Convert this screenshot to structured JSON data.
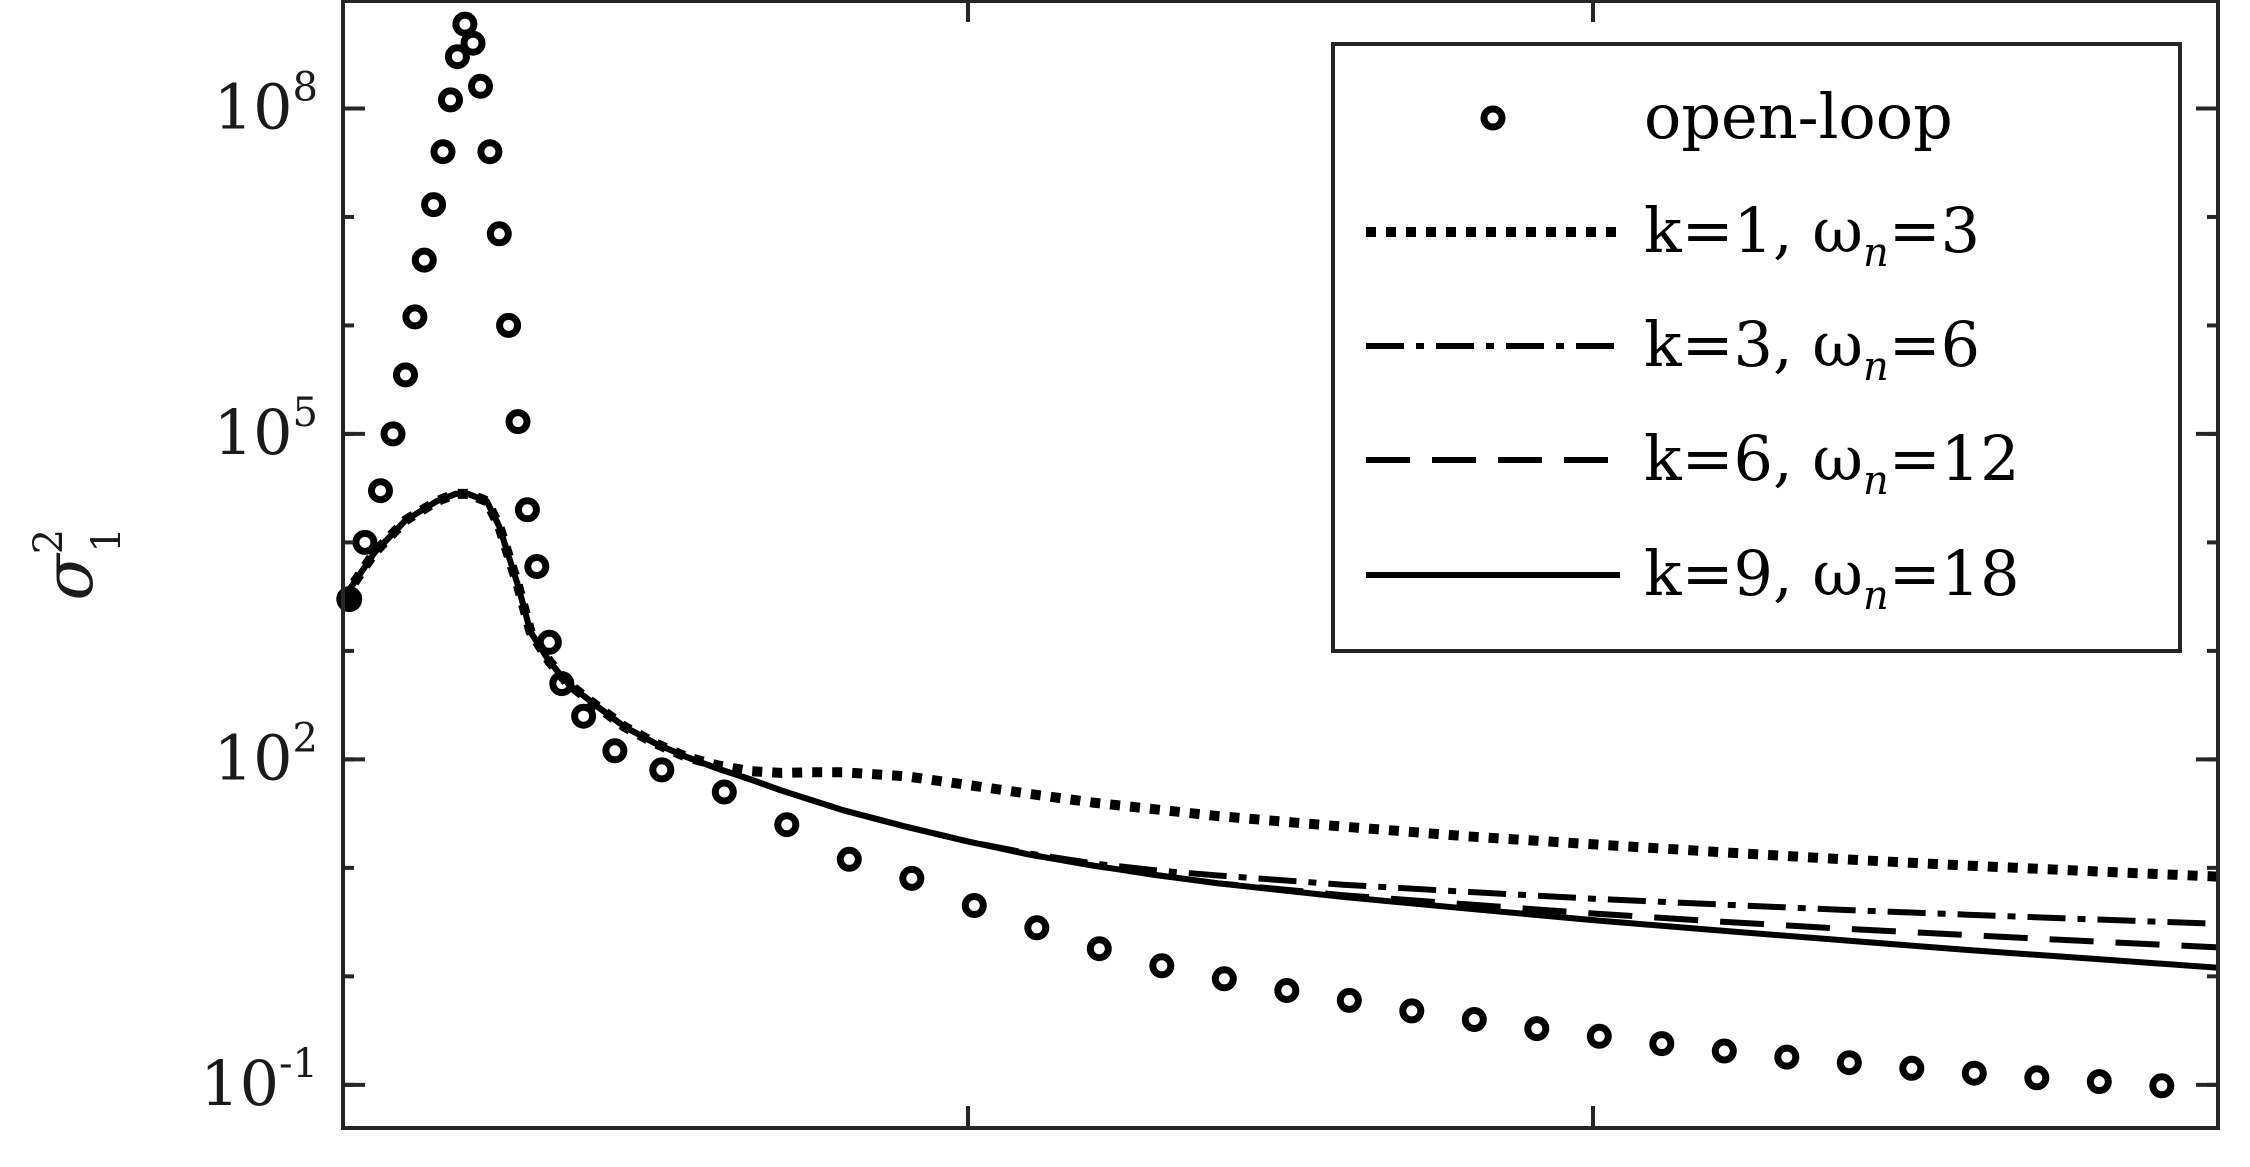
{
  "chart_data": {
    "type": "line",
    "ylabel": "σ",
    "ylabel_sup": "2",
    "ylabel_sub": "1",
    "yscale": "log",
    "ylim": [
      0.04,
      1000000000.0
    ],
    "xlim": [
      0,
      30
    ],
    "x_tick_values": [
      0,
      10,
      20,
      30
    ],
    "x_tick_labels": [
      "",
      "",
      "",
      ""
    ],
    "y_ticks": [
      {
        "value": 100000000.0,
        "base": "10",
        "exp": "8"
      },
      {
        "value": 100000.0,
        "base": "10",
        "exp": "5"
      },
      {
        "value": 100.0,
        "base": "10",
        "exp": "2"
      },
      {
        "value": 0.1,
        "base": "10",
        "exp": "-1"
      }
    ],
    "grid": false,
    "legend_position": "top-right",
    "series": [
      {
        "name": "open-loop",
        "style": "markers",
        "x": [
          0.1,
          0.35,
          0.6,
          0.8,
          1.0,
          1.15,
          1.3,
          1.45,
          1.6,
          1.72,
          1.83,
          1.95,
          2.08,
          2.2,
          2.35,
          2.5,
          2.65,
          2.8,
          2.95,
          3.1,
          3.3,
          3.5,
          3.85,
          4.35,
          5.1,
          6.1,
          7.1,
          8.1,
          9.1,
          10.1,
          11.1,
          12.1,
          13.1,
          14.1,
          15.1,
          16.1,
          17.1,
          18.1,
          19.1,
          20.1,
          21.1,
          22.1,
          23.1,
          24.1,
          25.1,
          26.1,
          27.1,
          28.1,
          29.1
        ],
        "y": [
          3000.0,
          10000.0,
          30000.0,
          100000.0,
          350000.0,
          1200000.0,
          4000000.0,
          13000000.0,
          40000000.0,
          120000000.0,
          300000000.0,
          600000000.0,
          400000000.0,
          160000000.0,
          40000000.0,
          7000000.0,
          1000000.0,
          130000.0,
          20000.0,
          6000.0,
          1200.0,
          500,
          250,
          120,
          80,
          50,
          25,
          12,
          8,
          4.5,
          2.8,
          1.8,
          1.25,
          0.95,
          0.74,
          0.6,
          0.48,
          0.4,
          0.33,
          0.28,
          0.24,
          0.205,
          0.18,
          0.16,
          0.142,
          0.128,
          0.116,
          0.107,
          0.098
        ]
      },
      {
        "name": "k=1, ω",
        "name_sub": "n",
        "name_suffix": "=3",
        "style": "dotted",
        "x": [
          0,
          0.5,
          1.0,
          1.5,
          1.8,
          2.0,
          2.3,
          2.5,
          2.8,
          3.0,
          3.3,
          3.6,
          4.0,
          4.5,
          5.0,
          5.5,
          6.0,
          6.5,
          7.0,
          7.5,
          8.0,
          9.0,
          10.0,
          11.0,
          12.0,
          14.0,
          16.0,
          18.0,
          20.0,
          22.0,
          24.0,
          26.0,
          28.0,
          30.0
        ],
        "y": [
          3000,
          8000,
          16000,
          24000,
          28000,
          28000,
          24000,
          14000,
          4000,
          1500,
          800,
          500,
          330,
          200,
          140,
          105,
          88,
          78,
          75,
          76,
          76,
          70,
          58,
          48,
          40,
          30,
          24,
          19.5,
          16.5,
          14,
          12,
          10.5,
          9.3,
          8.3
        ]
      },
      {
        "name": "k=3, ω",
        "name_sub": "n",
        "name_suffix": "=6",
        "style": "dashdot",
        "x": [
          0,
          0.5,
          1.0,
          1.5,
          1.8,
          2.0,
          2.3,
          2.5,
          2.8,
          3.0,
          3.3,
          3.6,
          4.0,
          4.5,
          5.0,
          5.5,
          6.0,
          6.5,
          7.0,
          8.0,
          9.0,
          10.0,
          11.0,
          12.0,
          13.0,
          14.0,
          16.0,
          18.0,
          20.0,
          22.0,
          24.0,
          26.0,
          28.0,
          30.0
        ],
        "y": [
          3000,
          8000,
          16000,
          24000,
          28000,
          28000,
          24000,
          14000,
          4000,
          1500,
          800,
          500,
          330,
          200,
          140,
          105,
          82,
          66,
          52,
          34,
          24,
          17.5,
          13.5,
          11,
          9.5,
          8.5,
          7.0,
          6.0,
          5.2,
          4.6,
          4.1,
          3.7,
          3.35,
          3.05
        ]
      },
      {
        "name": "k=6, ω",
        "name_sub": "n",
        "name_suffix": "=12",
        "style": "dashed",
        "x": [
          0,
          0.5,
          1.0,
          1.5,
          1.8,
          2.0,
          2.3,
          2.5,
          2.8,
          3.0,
          3.3,
          3.6,
          4.0,
          4.5,
          5.0,
          5.5,
          6.0,
          6.5,
          7.0,
          8.0,
          9.0,
          10.0,
          11.0,
          12.0,
          13.0,
          14.0,
          16.0,
          18.0,
          20.0,
          22.0,
          24.0,
          26.0,
          28.0,
          30.0
        ],
        "y": [
          3000,
          8000,
          16000,
          24000,
          28000,
          28000,
          24000,
          14000,
          4000,
          1500,
          800,
          500,
          330,
          200,
          140,
          105,
          82,
          66,
          52,
          34,
          24,
          17.5,
          13.2,
          10.5,
          8.6,
          7.2,
          5.6,
          4.6,
          3.8,
          3.2,
          2.75,
          2.4,
          2.1,
          1.85
        ]
      },
      {
        "name": "k=9, ω",
        "name_sub": "n",
        "name_suffix": "=18",
        "style": "solid",
        "x": [
          0,
          0.5,
          1.0,
          1.5,
          1.8,
          2.0,
          2.3,
          2.5,
          2.8,
          3.0,
          3.3,
          3.6,
          4.0,
          4.5,
          5.0,
          5.5,
          6.0,
          6.5,
          7.0,
          8.0,
          9.0,
          10.0,
          11.0,
          12.0,
          13.0,
          14.0,
          16.0,
          18.0,
          20.0,
          22.0,
          24.0,
          26.0,
          28.0,
          30.0
        ],
        "y": [
          3000,
          8000,
          16000,
          24000,
          28000,
          28000,
          24000,
          14000,
          4000,
          1500,
          800,
          500,
          330,
          200,
          140,
          105,
          82,
          66,
          52,
          34,
          24,
          17.5,
          13.2,
          10.5,
          8.6,
          7.2,
          5.4,
          4.2,
          3.3,
          2.65,
          2.15,
          1.75,
          1.45,
          1.2
        ]
      }
    ]
  }
}
